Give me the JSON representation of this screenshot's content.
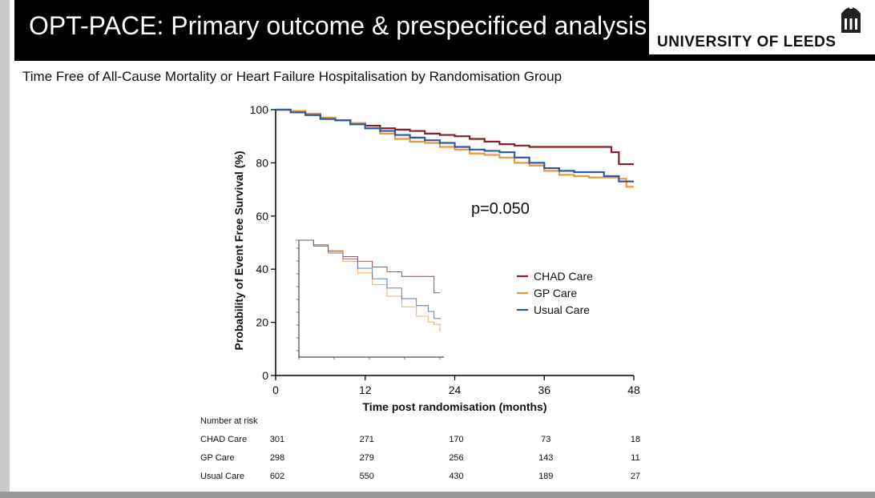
{
  "slide": {
    "title": "OPT-PACE: Primary outcome & prespecificed analysis",
    "logo_text": "UNIVERSITY OF LEEDS",
    "logo_icon": "university-crest-icon"
  },
  "chart_data": {
    "type": "line",
    "title": "Time Free of All-Cause Mortality or Heart Failure Hospitalisation by Randomisation Group",
    "xlabel": "Time post randomisation (months)",
    "ylabel": "Probability of Event Free Survival (%)",
    "xlim": [
      0,
      48
    ],
    "ylim": [
      0,
      100
    ],
    "xticks": [
      "0",
      "12",
      "24",
      "36",
      "48"
    ],
    "yticks": [
      "0",
      "20",
      "40",
      "60",
      "80",
      "100"
    ],
    "annotation": "p=0.050",
    "legend_position": "center-right",
    "grid": false,
    "series": [
      {
        "name": "CHAD Care",
        "color": "#8b1c2a",
        "x": [
          0,
          2,
          4,
          6,
          8,
          10,
          12,
          14,
          16,
          18,
          20,
          22,
          24,
          26,
          28,
          30,
          32,
          34,
          36,
          38,
          40,
          42,
          44,
          45,
          46,
          48
        ],
        "y": [
          100,
          99,
          98,
          97,
          96,
          95,
          94,
          93,
          92.5,
          92,
          91,
          90.5,
          90,
          89,
          88,
          87,
          86.5,
          86,
          86,
          86,
          86,
          86,
          86,
          84,
          79.5,
          79.5
        ]
      },
      {
        "name": "GP Care",
        "color": "#e69a3c",
        "x": [
          0,
          2,
          4,
          6,
          8,
          10,
          12,
          14,
          16,
          18,
          20,
          22,
          24,
          26,
          28,
          30,
          32,
          34,
          36,
          38,
          40,
          42,
          44,
          46,
          47,
          48
        ],
        "y": [
          100,
          99.5,
          98.5,
          97,
          96,
          95,
          93,
          91,
          89,
          88,
          87.5,
          86,
          85,
          83.5,
          83,
          82,
          80,
          79,
          77,
          75.5,
          75,
          74.5,
          74.5,
          74,
          71,
          71
        ]
      },
      {
        "name": "Usual Care",
        "color": "#2e5aa0",
        "x": [
          0,
          2,
          4,
          6,
          8,
          10,
          12,
          14,
          16,
          18,
          20,
          22,
          24,
          26,
          28,
          30,
          32,
          34,
          36,
          38,
          40,
          42,
          44,
          46,
          48
        ],
        "y": [
          100,
          99,
          98,
          96.5,
          96,
          94.5,
          93,
          92,
          90.5,
          89.5,
          88.5,
          87.5,
          86,
          85,
          84.5,
          84,
          82,
          80,
          78,
          77,
          76.5,
          76.5,
          75,
          73,
          73
        ]
      }
    ],
    "inset": {
      "description_series": [
        {
          "color": "#8b1c2a",
          "x": [
            0,
            5,
            10,
            15,
            20,
            25,
            30,
            35,
            40,
            44,
            46,
            48
          ],
          "y": [
            100,
            96,
            91,
            86,
            82,
            77,
            73,
            69,
            69,
            69,
            55,
            55
          ]
        },
        {
          "color": "#e69a3c",
          "x": [
            0,
            5,
            10,
            15,
            20,
            25,
            30,
            35,
            40,
            44,
            46,
            48
          ],
          "y": [
            100,
            95,
            90,
            82,
            72,
            62,
            52,
            43,
            35,
            30,
            28,
            22
          ]
        },
        {
          "color": "#2e5aa0",
          "x": [
            0,
            5,
            10,
            15,
            20,
            25,
            30,
            35,
            40,
            44,
            46,
            48
          ],
          "y": [
            100,
            95,
            89,
            84,
            76,
            67,
            59,
            50,
            44,
            39,
            33,
            32
          ]
        }
      ]
    },
    "risk_table": {
      "header": "Number at risk",
      "columns_x": [
        0,
        12,
        24,
        36,
        48
      ],
      "rows": [
        {
          "label": "CHAD Care",
          "values": [
            "301",
            "271",
            "170",
            "73",
            "18"
          ]
        },
        {
          "label": "GP Care",
          "values": [
            "298",
            "279",
            "256",
            "143",
            "11"
          ]
        },
        {
          "label": "Usual Care",
          "values": [
            "602",
            "550",
            "430",
            "189",
            "27"
          ]
        }
      ]
    }
  }
}
